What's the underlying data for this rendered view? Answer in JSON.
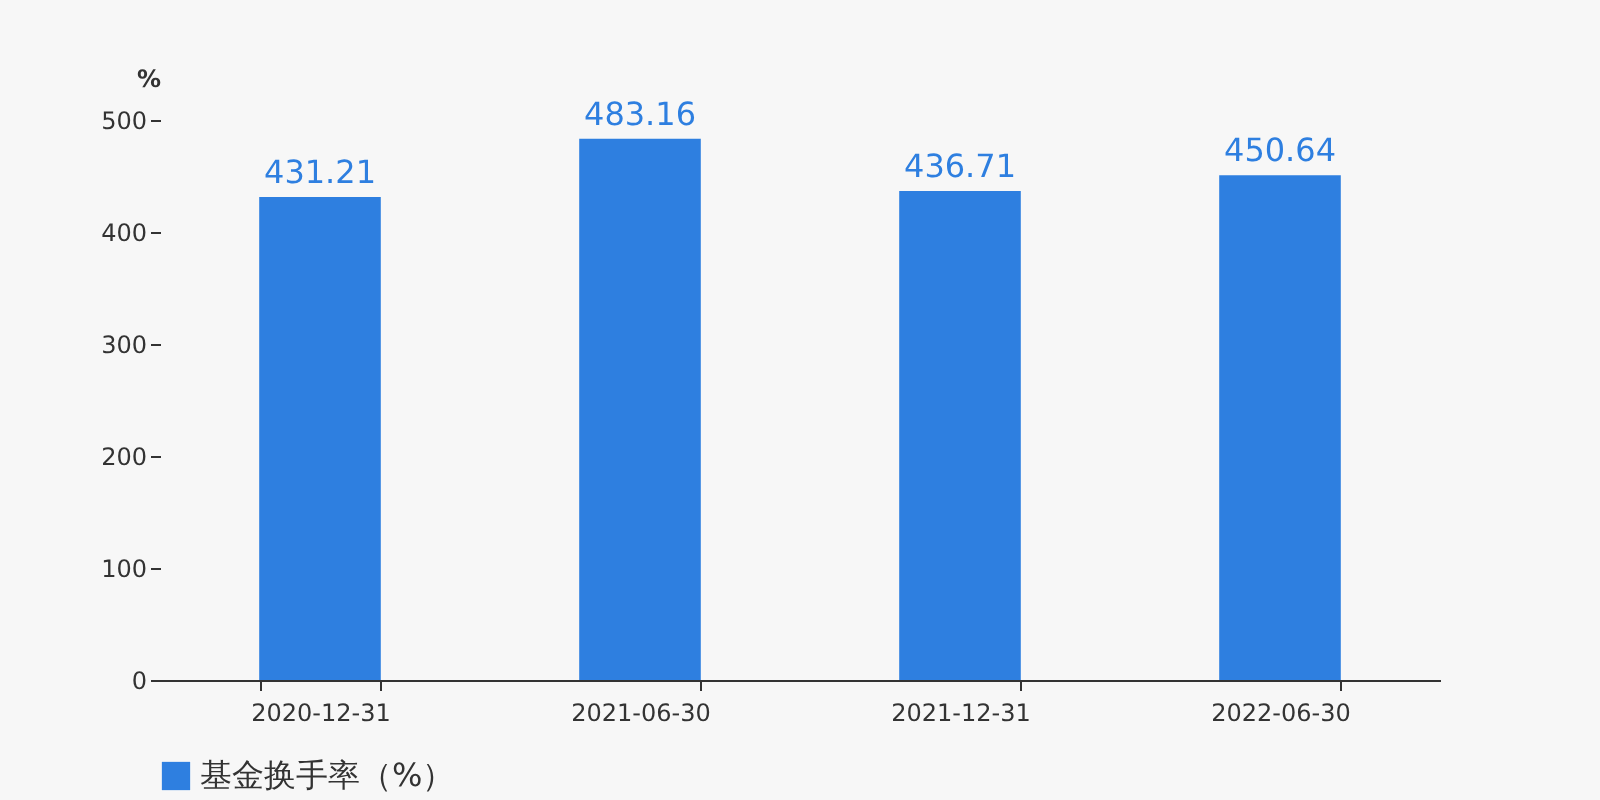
{
  "chart_data": {
    "type": "bar",
    "ylabel": "%",
    "categories": [
      "2020-12-31",
      "2021-06-30",
      "2021-12-31",
      "2022-06-30"
    ],
    "series": [
      {
        "name": "基金换手率（%）",
        "color": "#2e7fe0",
        "values": [
          431.21,
          483.16,
          436.71,
          450.64
        ]
      }
    ],
    "ylim": [
      0,
      500
    ],
    "yticks": [
      0,
      100,
      200,
      300,
      400,
      500
    ],
    "data_labels": true,
    "grid": false,
    "legend": "bottom"
  }
}
